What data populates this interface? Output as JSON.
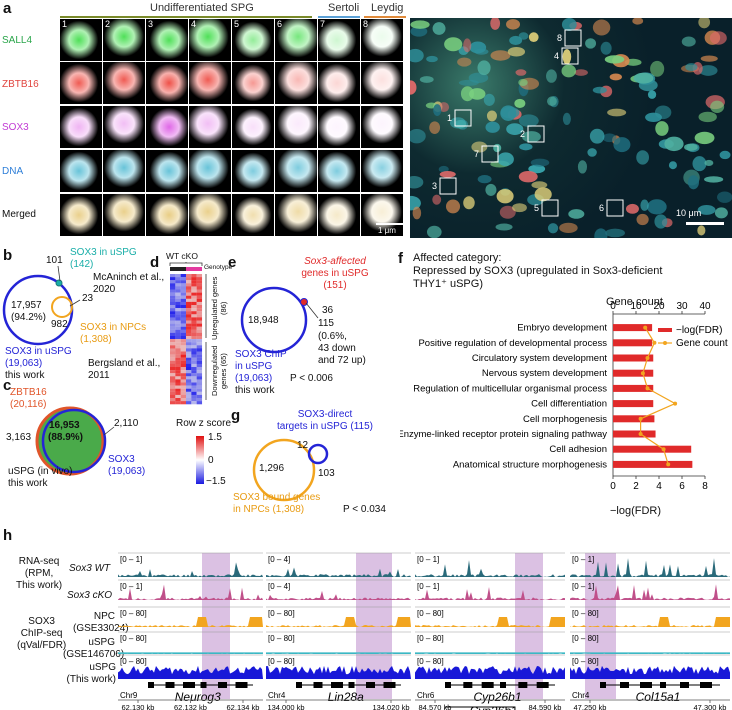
{
  "panel_a": {
    "label": "a",
    "groups": [
      "Undifferentiated SPG",
      "Sertoli",
      "Leydig"
    ],
    "rows": [
      "SALL4",
      "ZBTB16",
      "SOX3",
      "DNA",
      "Merged"
    ],
    "row_colors": [
      "#2aa54a",
      "#e0443e",
      "#c23bd4",
      "#2f7fd8",
      "#111111"
    ],
    "columns": [
      "1",
      "2",
      "3",
      "4",
      "5",
      "6",
      "7",
      "8"
    ],
    "scalebar_small": "1 μm",
    "scalebar_large": "10 μm",
    "overview_boxes": [
      "1",
      "2",
      "3",
      "4",
      "5",
      "6",
      "7",
      "8"
    ]
  },
  "panel_b": {
    "label": "b",
    "n_unique_uspg": "17,957",
    "pct_unique_uspg": "(94.2%)",
    "n_101": "101",
    "n_23": "23",
    "n_982": "982",
    "sox3_uspg_mcaninch": "SOX3 in uSPG",
    "sox3_uspg_mcaninch_n": "(142)",
    "mcaninch_ref_1": "McAninch et al.,",
    "mcaninch_ref_2": "2020",
    "sox3_npc": "SOX3 in NPCs",
    "sox3_npc_n": "(1,308)",
    "bergsland_ref_1": "Bergsland et al.,",
    "bergsland_ref_2": "2011",
    "this_work_label": "SOX3 in uSPG",
    "this_work_n": "(19,063)",
    "this_work": "this work"
  },
  "panel_c": {
    "label": "c",
    "zbtb16": "ZBTB16",
    "zbtb16_n": "(20,116)",
    "n_left": "3,163",
    "n_overlap": "16,953",
    "pct_overlap": "(88.9%)",
    "n_right": "2,110",
    "sox3": "SOX3",
    "sox3_n": "(19,063)",
    "caption_1": "uSPG (in vivo)",
    "caption_2": "this work"
  },
  "panel_d": {
    "label": "d",
    "col_header": "WT cKO",
    "genotype": "Genotype",
    "upregulated": "Upregulated genes (86)",
    "downregulated": "Downregulated genes (65)",
    "legend_title": "Row z score",
    "legend_ticks": [
      "1.5",
      "0",
      "−1.5"
    ]
  },
  "panel_e": {
    "label": "e",
    "affected_1": "Sox3-affected",
    "affected_2": "genes in uSPG",
    "affected_n": "(151)",
    "n_main": "18,948",
    "n_36": "36",
    "n_115": "115",
    "detail_1": "(0.6%,",
    "detail_2": "43 down",
    "detail_3": "and 72 up)",
    "chip_1": "SOX3 ChIP",
    "chip_2": "in uSPG",
    "chip_3": "(19,063)",
    "chip_4": "this work",
    "pvalue": "P < 0.006"
  },
  "panel_f": {
    "label": "f",
    "title_1": "Affected category:",
    "title_2": "Repressed by SOX3 (upregulated in Sox3-deficient",
    "title_3": "THY1⁺ uSPG)",
    "top_axis_label": "Gene count",
    "bottom_axis_label": "−log(FDR)",
    "legend_bar": "−log(FDR)",
    "legend_line": "Gene count"
  },
  "chart_data": {
    "type": "bar",
    "categories": [
      "Embryo development",
      "Positive regulation of developmental process",
      "Circulatory system development",
      "Nervous system development",
      "Regulation of multicellular organismal process",
      "Cell differentiation",
      "Cell morphogenesis",
      "Enzyme-linked receptor protein signaling pathway",
      "Cell adhesion",
      "Anatomical structure morphogenesis"
    ],
    "series": [
      {
        "name": "−log(FDR)",
        "axis": "bottom",
        "values": [
          3.4,
          3.4,
          3.5,
          3.5,
          3.5,
          3.5,
          3.6,
          3.7,
          6.8,
          6.9
        ]
      },
      {
        "name": "Gene count",
        "axis": "top",
        "values": [
          14,
          18,
          15,
          13,
          15,
          27,
          12,
          12,
          22,
          24
        ]
      }
    ],
    "bottom_ticks": [
      "0",
      "2",
      "4",
      "6",
      "8"
    ],
    "bottom_range": [
      0,
      8
    ],
    "top_ticks": [
      "0",
      "10",
      "20",
      "30",
      "40"
    ],
    "top_range": [
      0,
      40
    ],
    "bar_color": "#e02a2a",
    "line_color": "#f2a51f"
  },
  "panel_g": {
    "label": "g",
    "direct_1": "SOX3-direct",
    "direct_2": "targets in uSPG (115)",
    "n_left": "1,296",
    "n_overlap": "12",
    "n_right": "103",
    "npc_1": "SOX3 bound genes",
    "npc_2": "in NPCs (1,308)",
    "pvalue": "P < 0.034"
  },
  "panel_h": {
    "label": "h",
    "rnaseq_1": "RNA-seq",
    "rnaseq_2": "(RPM,",
    "rnaseq_3": "This work)",
    "chip_1": "SOX3",
    "chip_2": "ChIP-seq",
    "chip_3": "(qVal/FDR)",
    "track_wt": "Sox3 WT",
    "track_cko": "Sox3 cKO",
    "track_npc_1": "NPC",
    "track_npc_2": "(GSE33024)",
    "track_uspg_1": "uSPG",
    "track_uspg_2": "(GSE146706)",
    "track_this_1": "uSPG",
    "track_this_2": "(This work)",
    "loci": [
      {
        "gene": "Neurog3",
        "chr": "Chr9",
        "ticks": [
          "62,130 kb",
          "62,132 kb",
          "62,134 kb"
        ],
        "rna_scale": "[0 – 1]",
        "chip_scale": "[0 – 80]"
      },
      {
        "gene": "Lin28a",
        "chr": "Chr4",
        "ticks": [
          "134,000 kb",
          "134,020 kb"
        ],
        "rna_scale": "[0 – 4]",
        "chip_scale": "[0 – 80]"
      },
      {
        "gene": "Cyp26b1",
        "gene2": "Cyp26b1",
        "chr": "Chr6",
        "ticks": [
          "84,570 kb",
          "84,590 kb"
        ],
        "rna_scale": "[0 – 1]",
        "chip_scale": "[0 – 80]"
      },
      {
        "gene": "Col15a1",
        "chr": "Chr4",
        "ticks": [
          "47,250 kb",
          "47,300 kb"
        ],
        "rna_scale": "[0 – 1]",
        "chip_scale": "[0 – 80]"
      }
    ]
  }
}
